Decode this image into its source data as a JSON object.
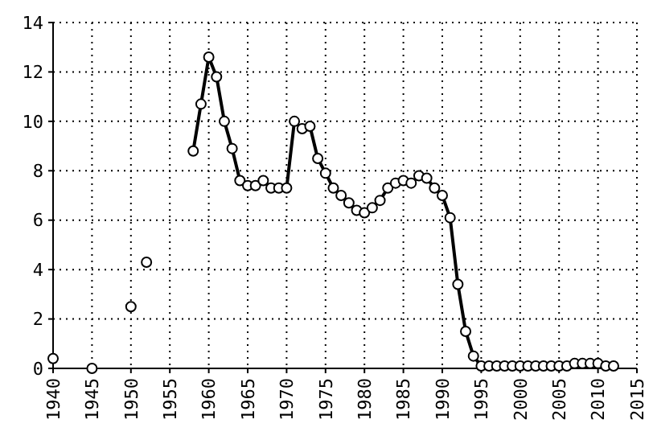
{
  "chart_data": {
    "type": "line",
    "x": [
      1940,
      1941,
      1945,
      1946,
      1950,
      1951,
      1952,
      1953,
      1958,
      1959,
      1960,
      1961,
      1962,
      1963,
      1964,
      1965,
      1966,
      1967,
      1968,
      1969,
      1970,
      1971,
      1972,
      1973,
      1974,
      1975,
      1976,
      1977,
      1978,
      1979,
      1980,
      1981,
      1982,
      1983,
      1984,
      1985,
      1986,
      1987,
      1988,
      1989,
      1990,
      1991,
      1992,
      1993,
      1994,
      1995,
      1996,
      1997,
      1998,
      1999,
      2000,
      2001,
      2002,
      2003,
      2004,
      2005,
      2006,
      2007,
      2008,
      2009,
      2010,
      2011,
      2012
    ],
    "series": [
      {
        "color": "#000000",
        "values": [
          0.4,
          null,
          0,
          null,
          2.5,
          null,
          4.3,
          null,
          8.8,
          10.7,
          12.6,
          11.8,
          10.0,
          8.9,
          7.6,
          7.4,
          7.4,
          7.6,
          7.3,
          7.3,
          7.3,
          10.0,
          9.7,
          9.8,
          8.5,
          7.9,
          7.3,
          7.0,
          6.7,
          6.4,
          6.3,
          6.5,
          6.8,
          7.3,
          7.5,
          7.6,
          7.5,
          7.8,
          7.7,
          7.3,
          7.0,
          6.1,
          3.4,
          1.5,
          0.5,
          0.1,
          0.1,
          0.1,
          0.1,
          0.1,
          0.1,
          0.1,
          0.1,
          0.1,
          0.1,
          0.1,
          0.1,
          0.2,
          0.2,
          0.2,
          0.2,
          0.1,
          0.1
        ]
      }
    ],
    "xlim": [
      1940,
      2015
    ],
    "xticks": [
      1940,
      1945,
      1950,
      1955,
      1960,
      1965,
      1970,
      1975,
      1980,
      1985,
      1990,
      1995,
      2000,
      2005,
      2010,
      2015
    ],
    "ylim": [
      0,
      14
    ],
    "yticks": [
      0,
      2,
      4,
      6,
      8,
      10,
      12,
      14
    ],
    "grid": true,
    "marker": "circle",
    "line_style": "solid"
  }
}
